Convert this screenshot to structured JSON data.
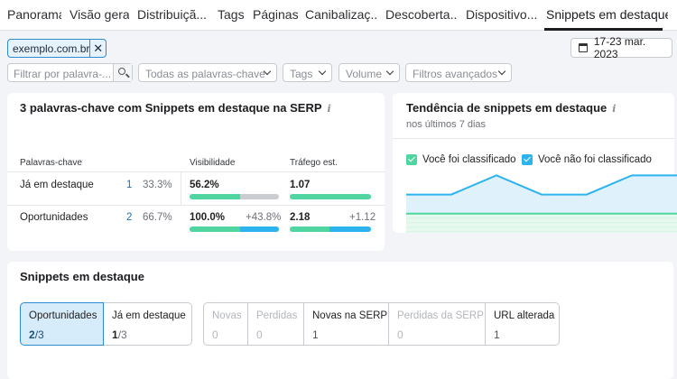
{
  "tabs": [
    {
      "label": "Panorama"
    },
    {
      "label": "Visão geral"
    },
    {
      "label": "Distribuiçã..."
    },
    {
      "label": "Tags"
    },
    {
      "label": "Páginas"
    },
    {
      "label": "Canibalizaç..."
    },
    {
      "label": "Descoberta..."
    },
    {
      "label": "Dispositivo..."
    },
    {
      "label": "Snippets em destaque"
    }
  ],
  "active_tab": "Snippets em destaque",
  "domain_chip": {
    "label": "exemplo.com.br",
    "remove": "✕"
  },
  "date_range": "17-23 mar. 2023",
  "filters": {
    "search_placeholder": "Filtrar por palavra-...",
    "keywords_dropdown": "Todas as palavras-chave",
    "tags_dropdown": "Tags",
    "volume_dropdown": "Volume",
    "advanced_dropdown": "Filtros avançados"
  },
  "summary_card": {
    "title": "3 palavras-chave com Snippets em destaque na SERP",
    "info": "i",
    "headers": {
      "keywords": "Palavras-chave",
      "visibility": "Visibilidade",
      "traffic": "Tráfego est."
    },
    "rows": [
      {
        "label": "Já em destaque",
        "count": "1",
        "pct": "33.3%",
        "visibility": "56.2%",
        "visibility_delta": "",
        "traffic": "1.07",
        "traffic_delta": "",
        "vis_green": 0.562,
        "vis_blue": 0.0,
        "tra_green": 1.0,
        "tra_blue": 0.0
      },
      {
        "label": "Oportunidades",
        "count": "2",
        "pct": "66.7%",
        "visibility": "100.0%",
        "visibility_delta": "+43.8%",
        "traffic": "2.18",
        "traffic_delta": "+1.12",
        "vis_green": 0.562,
        "vis_blue": 0.438,
        "tra_green": 0.49,
        "tra_blue": 0.51
      }
    ]
  },
  "trend_card": {
    "title": "Tendência de snippets em destaque",
    "info": "i",
    "subtitle": "nos últimos 7 dias",
    "legend": [
      {
        "label": "Você foi classificado",
        "color": "#4fd5a0"
      },
      {
        "label": "Você não foi classificado",
        "color": "#2db3ee"
      }
    ]
  },
  "chart_data": {
    "type": "area",
    "series": [
      {
        "name": "Você foi classificado",
        "values": [
          1,
          1,
          1,
          1,
          1,
          1,
          1
        ]
      },
      {
        "name": "Você não foi classificado",
        "values": [
          2,
          2,
          3,
          2,
          2,
          3,
          3
        ]
      }
    ],
    "ylim": [
      0,
      3.3
    ],
    "grid": false
  },
  "snippets_card": {
    "title": "Snippets em destaque",
    "tabs_left": [
      {
        "label": "Oportunidades",
        "value_bold": "2",
        "value_rest": "/3",
        "active": true
      },
      {
        "label": "Já em destaque",
        "value_bold": "1",
        "value_rest": "/3",
        "active": false
      }
    ],
    "tabs_right": [
      {
        "label": "Novas",
        "value": "0",
        "disabled": true
      },
      {
        "label": "Perdidas",
        "value": "0",
        "disabled": true
      },
      {
        "label": "Novas na SERP",
        "value": "1",
        "disabled": false
      },
      {
        "label": "Perdidas da SERP",
        "value": "0",
        "disabled": true
      },
      {
        "label": "URL alterada",
        "value": "1",
        "disabled": false
      }
    ]
  },
  "colors": {
    "green": "#4fd5a0",
    "blue": "#2db3ee",
    "accent": "#2d8bd4"
  }
}
